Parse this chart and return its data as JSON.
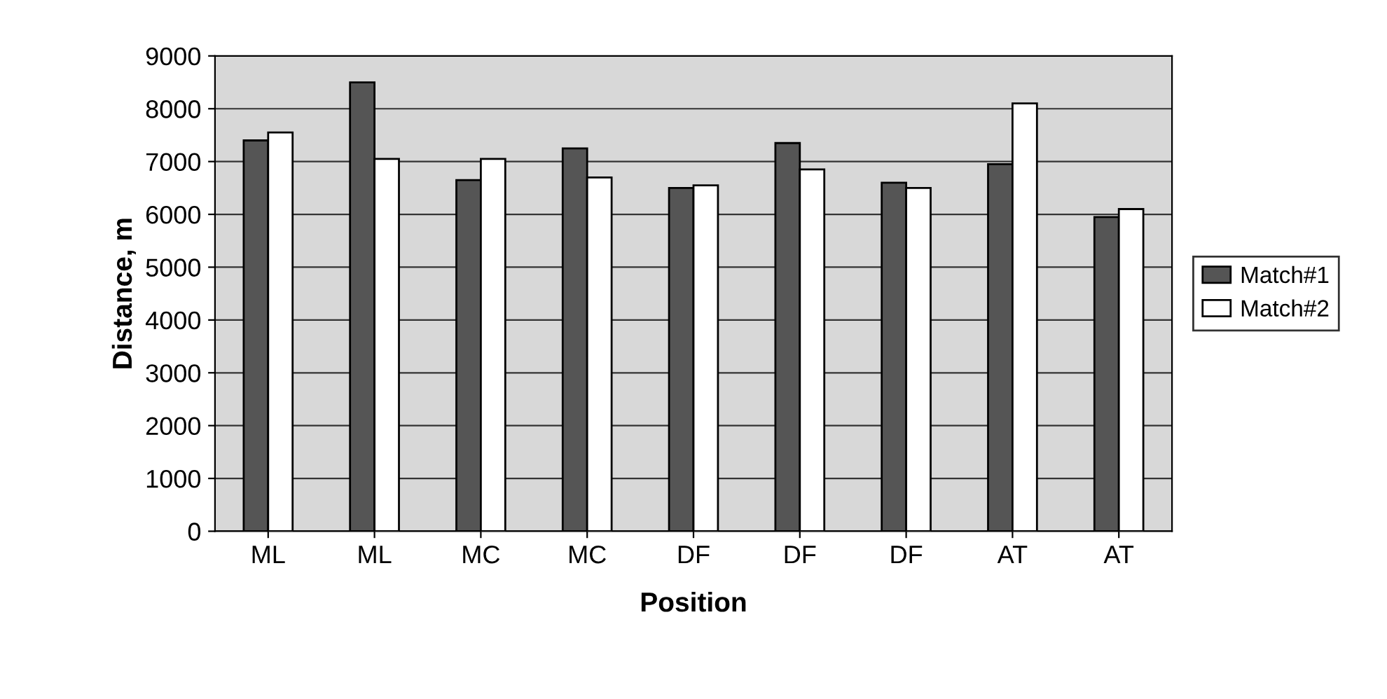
{
  "chart_data": {
    "type": "bar",
    "xlabel": "Position",
    "ylabel": "Distance, m",
    "categories": [
      "ML",
      "ML",
      "MC",
      "MC",
      "DF",
      "DF",
      "DF",
      "AT",
      "AT"
    ],
    "series": [
      {
        "name": "Match#1",
        "color": "#555555",
        "values": [
          7400,
          8500,
          6650,
          7250,
          6500,
          7350,
          6600,
          6950,
          5950
        ]
      },
      {
        "name": "Match#2",
        "color": "#ffffff",
        "values": [
          7550,
          7050,
          7050,
          6700,
          6550,
          6850,
          6500,
          8100,
          6100
        ]
      }
    ],
    "ylim": [
      0,
      9000
    ],
    "yticks": [
      0,
      1000,
      2000,
      3000,
      4000,
      5000,
      6000,
      7000,
      8000,
      9000
    ],
    "grid": "y",
    "legend": "right"
  }
}
